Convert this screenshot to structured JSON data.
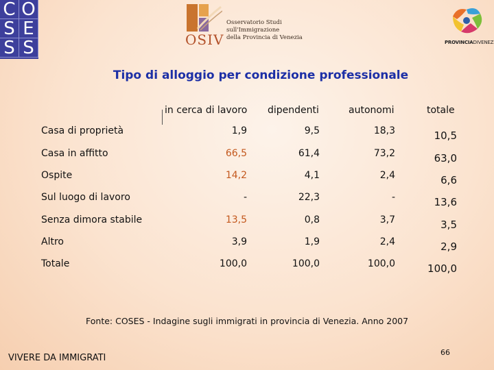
{
  "logos": {
    "coses_letters": [
      "C",
      "O",
      "S",
      "E",
      "S",
      "S"
    ],
    "osiv_word": "OSIV",
    "osiv_lines": [
      "Osservatorio Studi",
      "sull'Immigrazione",
      "della Provincia di Venezia"
    ],
    "provincia_bold": "PROVINCIA",
    "provincia_thin": "DIVENEZIA"
  },
  "title": "Tipo di alloggio per condizione professionale",
  "table": {
    "columns": [
      "in cerca di lavoro",
      "dipendenti",
      "autonomi",
      "totale"
    ],
    "rows": [
      {
        "label": "Casa di proprietà",
        "values": [
          "1,9",
          "9,5",
          "18,3",
          "10,5"
        ]
      },
      {
        "label": "Casa in affitto",
        "values": [
          "66,5",
          "61,4",
          "73,2",
          "63,0"
        ]
      },
      {
        "label": "Ospite",
        "values": [
          "14,2",
          "4,1",
          "2,4",
          "6,6"
        ]
      },
      {
        "label": "Sul luogo di lavoro",
        "values": [
          "-",
          "22,3",
          "-",
          "13,6"
        ]
      },
      {
        "label": "Senza dimora stabile",
        "values": [
          "13,5",
          "0,8",
          "3,7",
          "3,5"
        ]
      },
      {
        "label": "Altro",
        "values": [
          "3,9",
          "1,9",
          "2,4",
          "2,9"
        ]
      },
      {
        "label": "Totale",
        "values": [
          "100,0",
          "100,0",
          "100,0",
          "100,0"
        ]
      }
    ]
  },
  "source": "Fonte: COSES - Indagine sugli immigrati in provincia di Venezia. Anno 2007",
  "footer": "VIVERE DA IMMIGRATI",
  "page_number": "66",
  "colors": {
    "title": "#1c2fa6",
    "highlight": "#c3581d",
    "coses_bg": "#3d3f9c"
  }
}
